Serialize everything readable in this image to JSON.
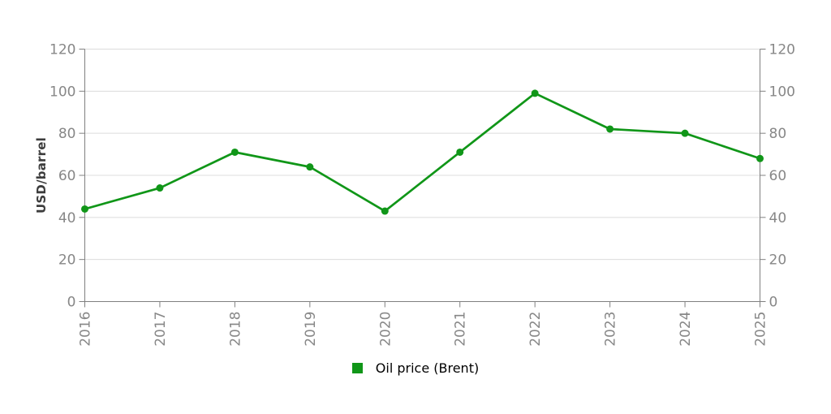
{
  "chart_data": {
    "type": "line",
    "title": "",
    "xlabel": "",
    "ylabel": "USD/barrel",
    "categories": [
      "2016",
      "2017",
      "2018",
      "2019",
      "2020",
      "2021",
      "2022",
      "2023",
      "2024",
      "2025"
    ],
    "series": [
      {
        "name": "Oil price (Brent)",
        "values": [
          44,
          54,
          71,
          64,
          43,
          71,
          99,
          82,
          80,
          68
        ],
        "color": "#109618",
        "marker": "circle"
      }
    ],
    "ylim": [
      0,
      120
    ],
    "yticks": [
      0,
      20,
      40,
      60,
      80,
      100,
      120
    ],
    "grid": true,
    "dual_y_axis": true,
    "x_label_rotation": -90,
    "legend_position": "bottom"
  },
  "style": {
    "line_color": "#109618",
    "gridline_color": "#dcdcdc",
    "axis_color": "#808080",
    "tick_label_color": "#878787",
    "axis_title_color": "#3d3d3d",
    "legend_text_color": "#000000",
    "background_color": "#ffffff"
  }
}
